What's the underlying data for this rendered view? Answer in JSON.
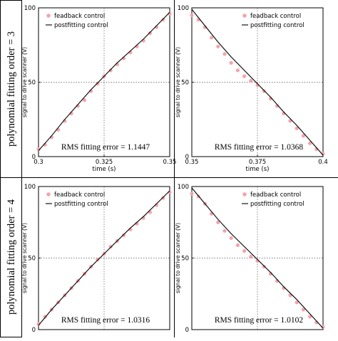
{
  "row_labels": [
    "polynomial fitting order = 3",
    "polynomial fitting order = 4"
  ],
  "colors": {
    "feedback": "#f4a3ac",
    "postfitting": "#000000",
    "frame": "#000000",
    "grid": "#555555"
  },
  "chart_data": [
    {
      "type": "line",
      "xlabel": "time (s)",
      "ylabel": "signal to drive scanner (V)",
      "xlim": [
        0.3,
        0.35
      ],
      "ylim": [
        0,
        100
      ],
      "x_ticks": [
        "0.3",
        "0.325",
        "0.35"
      ],
      "y_ticks": [
        "0",
        "50",
        "100"
      ],
      "grid": true,
      "legend_position": "top-left",
      "annotation": "RMS fitting error = 1.1447",
      "series": [
        {
          "name": "feadback control",
          "style": "markers",
          "x": [
            0.3,
            0.3025,
            0.305,
            0.3075,
            0.31,
            0.3125,
            0.315,
            0.3175,
            0.32,
            0.3225,
            0.325,
            0.3275,
            0.33,
            0.3325,
            0.335,
            0.3375,
            0.34,
            0.3425,
            0.345,
            0.3475,
            0.35
          ],
          "y": [
            5,
            8,
            13,
            18,
            24,
            29,
            34,
            38,
            44,
            49,
            54,
            58,
            62,
            66,
            70,
            74,
            78,
            83,
            87,
            92,
            96
          ]
        },
        {
          "name": "postfitting control",
          "style": "line",
          "x": [
            0.3,
            0.305,
            0.31,
            0.315,
            0.32,
            0.325,
            0.33,
            0.335,
            0.34,
            0.345,
            0.35
          ],
          "y": [
            4,
            14,
            25,
            35,
            45,
            54,
            63,
            71,
            79,
            88,
            97
          ]
        }
      ]
    },
    {
      "type": "line",
      "xlabel": "time (s)",
      "ylabel": "signal to drive scanner (V)",
      "xlim": [
        0.35,
        0.4
      ],
      "ylim": [
        0,
        100
      ],
      "x_ticks": [
        "0.35",
        "0.375",
        "0.4"
      ],
      "y_ticks": [
        "0",
        "50",
        "100"
      ],
      "grid": true,
      "legend_position": "top-right",
      "annotation": "RMS fitting error = 1.0368",
      "series": [
        {
          "name": "feadback control",
          "style": "markers",
          "x": [
            0.35,
            0.3525,
            0.355,
            0.3575,
            0.36,
            0.3625,
            0.365,
            0.3675,
            0.37,
            0.3725,
            0.375,
            0.3775,
            0.38,
            0.3825,
            0.385,
            0.3875,
            0.39,
            0.3925,
            0.395,
            0.3975,
            0.4
          ],
          "y": [
            95,
            92,
            87,
            80,
            74,
            69,
            63,
            58,
            54,
            51,
            48,
            44,
            39,
            34,
            29,
            24,
            19,
            14,
            9,
            5,
            2
          ]
        },
        {
          "name": "postfitting control",
          "style": "line",
          "x": [
            0.35,
            0.355,
            0.36,
            0.365,
            0.37,
            0.375,
            0.38,
            0.385,
            0.39,
            0.395,
            0.4
          ],
          "y": [
            99,
            88,
            77,
            67,
            58,
            49,
            40,
            30,
            21,
            11,
            1
          ]
        }
      ]
    },
    {
      "type": "line",
      "xlabel": "",
      "ylabel": "signal to drive scanner (V)",
      "xlim": [
        0.3,
        0.35
      ],
      "ylim": [
        0,
        100
      ],
      "x_ticks": [],
      "y_ticks": [
        "0",
        "50",
        "100"
      ],
      "grid": true,
      "legend_position": "top-left",
      "annotation": "RMS fitting error = 1.0316",
      "series": [
        {
          "name": "feadback control",
          "style": "markers",
          "x": [
            0.3,
            0.3025,
            0.305,
            0.3075,
            0.31,
            0.3125,
            0.315,
            0.3175,
            0.32,
            0.3225,
            0.325,
            0.3275,
            0.33,
            0.3325,
            0.335,
            0.3375,
            0.34,
            0.3425,
            0.345,
            0.3475,
            0.35
          ],
          "y": [
            4,
            9,
            14,
            19,
            24,
            29,
            34,
            39,
            44,
            49,
            53,
            58,
            62,
            66,
            70,
            74,
            78,
            82,
            87,
            92,
            96
          ]
        },
        {
          "name": "postfitting control",
          "style": "line",
          "x": [
            0.3,
            0.305,
            0.31,
            0.315,
            0.32,
            0.325,
            0.33,
            0.335,
            0.34,
            0.345,
            0.35
          ],
          "y": [
            3,
            14,
            24,
            34,
            44,
            53,
            62,
            71,
            79,
            88,
            97
          ]
        }
      ]
    },
    {
      "type": "line",
      "xlabel": "",
      "ylabel": "signal to drive scanner (V)",
      "xlim": [
        0.35,
        0.4
      ],
      "ylim": [
        0,
        100
      ],
      "x_ticks": [],
      "y_ticks": [
        "0",
        "50",
        "100"
      ],
      "grid": true,
      "legend_position": "top-right",
      "annotation": "RMS fitting error = 1.0102",
      "series": [
        {
          "name": "feadback control",
          "style": "markers",
          "x": [
            0.35,
            0.3525,
            0.355,
            0.3575,
            0.36,
            0.3625,
            0.365,
            0.3675,
            0.37,
            0.3725,
            0.375,
            0.3775,
            0.38,
            0.3825,
            0.385,
            0.3875,
            0.39,
            0.3925,
            0.395,
            0.3975,
            0.4
          ],
          "y": [
            95,
            93,
            88,
            81,
            75,
            69,
            64,
            59,
            55,
            51,
            48,
            44,
            39,
            34,
            29,
            24,
            19,
            14,
            9,
            5,
            2
          ]
        },
        {
          "name": "postfitting control",
          "style": "line",
          "x": [
            0.35,
            0.355,
            0.36,
            0.365,
            0.37,
            0.375,
            0.38,
            0.385,
            0.39,
            0.395,
            0.4
          ],
          "y": [
            99,
            88,
            77,
            67,
            58,
            49,
            40,
            30,
            21,
            11,
            1
          ]
        }
      ]
    }
  ]
}
